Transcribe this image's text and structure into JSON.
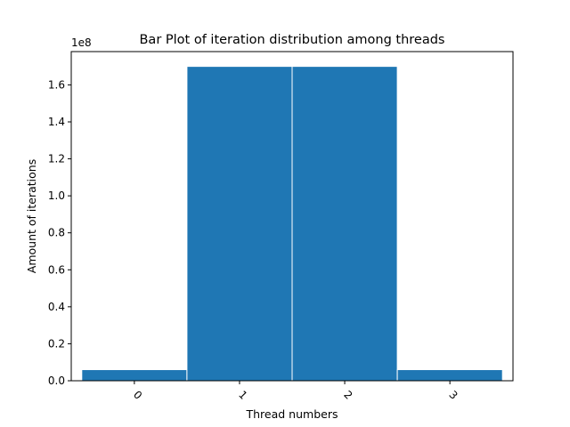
{
  "chart_data": {
    "type": "bar",
    "title": "Bar Plot of iteration distribution among threads",
    "xlabel": "Thread numbers",
    "ylabel": "Amount of iterations",
    "categories": [
      "0",
      "1",
      "2",
      "3"
    ],
    "values": [
      6000000,
      170000000,
      170000000,
      6000000
    ],
    "ylim": [
      0,
      178000000
    ],
    "y_ticks": [
      0.0,
      0.2,
      0.4,
      0.6,
      0.8,
      1.0,
      1.2,
      1.4,
      1.6
    ],
    "y_tick_labels": [
      "0.0",
      "0.2",
      "0.4",
      "0.6",
      "0.8",
      "1.0",
      "1.2",
      "1.4",
      "1.6"
    ],
    "y_scale_label": "1e8",
    "y_scale": 100000000,
    "bar_color": "#1f77b4",
    "grid": false,
    "x_tick_rotation": 45
  }
}
